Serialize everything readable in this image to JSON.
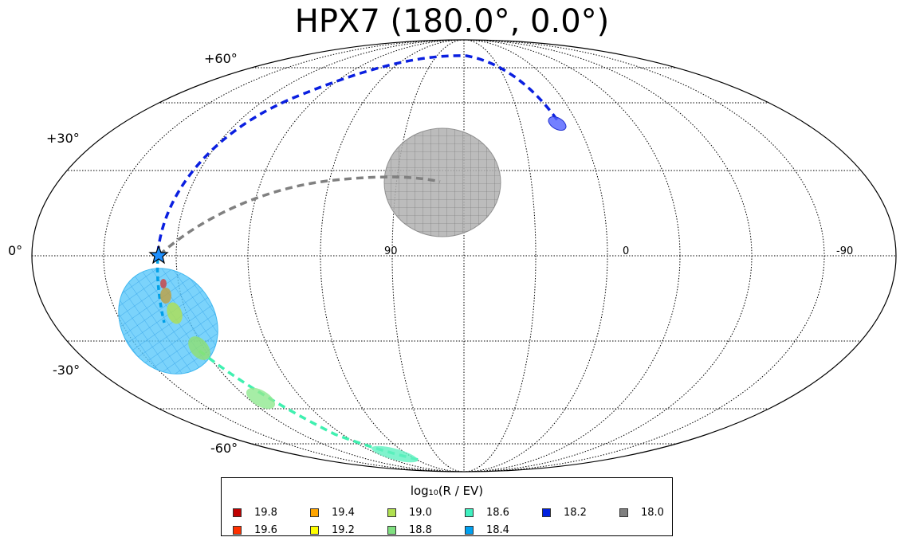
{
  "title": "HPX7 (180.0°, 0.0°)",
  "lat_labels": [
    "+60°",
    "+30°",
    "0°",
    "-30°",
    "-60°"
  ],
  "lon_labels": [
    "90",
    "0",
    "-90"
  ],
  "legend": {
    "title": "log₁₀(R / EV)",
    "items": [
      {
        "label": "19.8",
        "color": "#c00000"
      },
      {
        "label": "19.4",
        "color": "#ffa500"
      },
      {
        "label": "19.0",
        "color": "#b0e050"
      },
      {
        "label": "18.6",
        "color": "#40f0c0"
      },
      {
        "label": "18.2",
        "color": "#0020e0"
      },
      {
        "label": "18.0",
        "color": "#808080"
      },
      {
        "label": "19.6",
        "color": "#ff3000"
      },
      {
        "label": "19.2",
        "color": "#ffff00"
      },
      {
        "label": "18.8",
        "color": "#80e080"
      },
      {
        "label": "18.4",
        "color": "#00a0f0"
      }
    ]
  },
  "colors": {
    "grid": "#000000",
    "blue_track": "#0a1fe0",
    "gray_track": "#808080",
    "cyan_track": "#00a0e8",
    "mint_track": "#40f0b0",
    "gray_region": "#a0a0a0",
    "cyan_region": "#44c0f8"
  },
  "marker": "star-icon"
}
